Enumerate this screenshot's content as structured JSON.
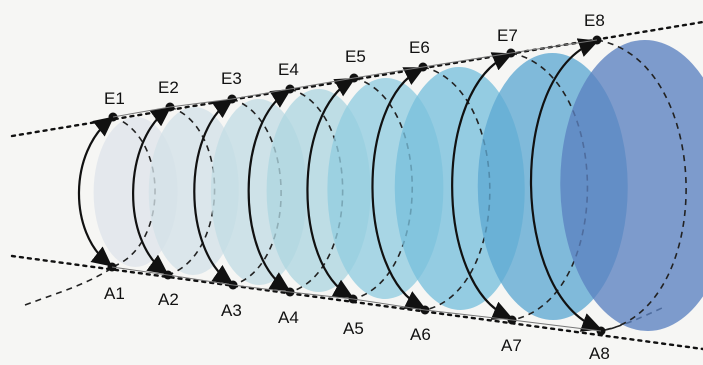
{
  "diagram": {
    "stages": [
      {
        "top_label": "E1",
        "bottom_label": "A1",
        "fill": "#dfe4ea"
      },
      {
        "top_label": "E2",
        "bottom_label": "A2",
        "fill": "#d4e1e8"
      },
      {
        "top_label": "E3",
        "bottom_label": "A3",
        "fill": "#c3dce4"
      },
      {
        "top_label": "E4",
        "bottom_label": "A4",
        "fill": "#aed6e0"
      },
      {
        "top_label": "E5",
        "bottom_label": "A5",
        "fill": "#92cde0"
      },
      {
        "top_label": "E6",
        "bottom_label": "A6",
        "fill": "#78c0dc"
      },
      {
        "top_label": "E7",
        "bottom_label": "A7",
        "fill": "#5fa9d2"
      },
      {
        "top_label": "E8",
        "bottom_label": "A8",
        "fill": "#5b82c0"
      }
    ]
  }
}
